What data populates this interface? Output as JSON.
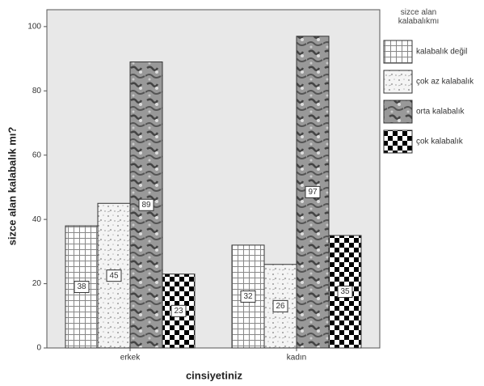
{
  "chart_data": {
    "type": "bar",
    "categories": [
      "erkek",
      "kadın"
    ],
    "series": [
      {
        "name": "kalabalık değil",
        "pattern": "grid",
        "values": [
          38,
          32
        ]
      },
      {
        "name": "çok az kalabalık",
        "pattern": "speckle",
        "values": [
          45,
          26
        ]
      },
      {
        "name": "orta kalabalık",
        "pattern": "mottle",
        "values": [
          89,
          97
        ]
      },
      {
        "name": "çok kalabalık",
        "pattern": "checker",
        "values": [
          23,
          35
        ]
      }
    ],
    "ylim": [
      0,
      105
    ],
    "yticks": [
      0,
      20,
      40,
      60,
      80,
      100
    ],
    "y_label": "sizce alan kalabalık mı?",
    "x_label": "cinsiyetiniz",
    "legend_title": "sizce alan kalabalıkmı",
    "legend_position": "right"
  }
}
